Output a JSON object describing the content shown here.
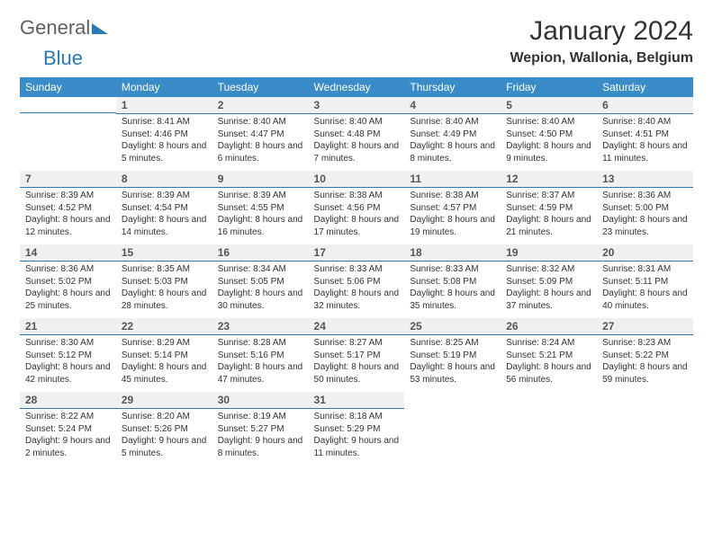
{
  "logo": {
    "general": "General",
    "blue": "Blue"
  },
  "title": "January 2024",
  "location": "Wepion, Wallonia, Belgium",
  "columns": [
    "Sunday",
    "Monday",
    "Tuesday",
    "Wednesday",
    "Thursday",
    "Friday",
    "Saturday"
  ],
  "colors": {
    "header_bg": "#3a8cc9",
    "header_text": "#ffffff",
    "daynum_bg": "#eef0f2",
    "daynum_border": "#2b7ab8",
    "text": "#333333",
    "logo_gray": "#606060",
    "logo_blue": "#2b7ab8"
  },
  "weeks": [
    [
      {
        "day": "",
        "sunrise": "",
        "sunset": "",
        "daylight": ""
      },
      {
        "day": "1",
        "sunrise": "8:41 AM",
        "sunset": "4:46 PM",
        "daylight": "8 hours and 5 minutes."
      },
      {
        "day": "2",
        "sunrise": "8:40 AM",
        "sunset": "4:47 PM",
        "daylight": "8 hours and 6 minutes."
      },
      {
        "day": "3",
        "sunrise": "8:40 AM",
        "sunset": "4:48 PM",
        "daylight": "8 hours and 7 minutes."
      },
      {
        "day": "4",
        "sunrise": "8:40 AM",
        "sunset": "4:49 PM",
        "daylight": "8 hours and 8 minutes."
      },
      {
        "day": "5",
        "sunrise": "8:40 AM",
        "sunset": "4:50 PM",
        "daylight": "8 hours and 9 minutes."
      },
      {
        "day": "6",
        "sunrise": "8:40 AM",
        "sunset": "4:51 PM",
        "daylight": "8 hours and 11 minutes."
      }
    ],
    [
      {
        "day": "7",
        "sunrise": "8:39 AM",
        "sunset": "4:52 PM",
        "daylight": "8 hours and 12 minutes."
      },
      {
        "day": "8",
        "sunrise": "8:39 AM",
        "sunset": "4:54 PM",
        "daylight": "8 hours and 14 minutes."
      },
      {
        "day": "9",
        "sunrise": "8:39 AM",
        "sunset": "4:55 PM",
        "daylight": "8 hours and 16 minutes."
      },
      {
        "day": "10",
        "sunrise": "8:38 AM",
        "sunset": "4:56 PM",
        "daylight": "8 hours and 17 minutes."
      },
      {
        "day": "11",
        "sunrise": "8:38 AM",
        "sunset": "4:57 PM",
        "daylight": "8 hours and 19 minutes."
      },
      {
        "day": "12",
        "sunrise": "8:37 AM",
        "sunset": "4:59 PM",
        "daylight": "8 hours and 21 minutes."
      },
      {
        "day": "13",
        "sunrise": "8:36 AM",
        "sunset": "5:00 PM",
        "daylight": "8 hours and 23 minutes."
      }
    ],
    [
      {
        "day": "14",
        "sunrise": "8:36 AM",
        "sunset": "5:02 PM",
        "daylight": "8 hours and 25 minutes."
      },
      {
        "day": "15",
        "sunrise": "8:35 AM",
        "sunset": "5:03 PM",
        "daylight": "8 hours and 28 minutes."
      },
      {
        "day": "16",
        "sunrise": "8:34 AM",
        "sunset": "5:05 PM",
        "daylight": "8 hours and 30 minutes."
      },
      {
        "day": "17",
        "sunrise": "8:33 AM",
        "sunset": "5:06 PM",
        "daylight": "8 hours and 32 minutes."
      },
      {
        "day": "18",
        "sunrise": "8:33 AM",
        "sunset": "5:08 PM",
        "daylight": "8 hours and 35 minutes."
      },
      {
        "day": "19",
        "sunrise": "8:32 AM",
        "sunset": "5:09 PM",
        "daylight": "8 hours and 37 minutes."
      },
      {
        "day": "20",
        "sunrise": "8:31 AM",
        "sunset": "5:11 PM",
        "daylight": "8 hours and 40 minutes."
      }
    ],
    [
      {
        "day": "21",
        "sunrise": "8:30 AM",
        "sunset": "5:12 PM",
        "daylight": "8 hours and 42 minutes."
      },
      {
        "day": "22",
        "sunrise": "8:29 AM",
        "sunset": "5:14 PM",
        "daylight": "8 hours and 45 minutes."
      },
      {
        "day": "23",
        "sunrise": "8:28 AM",
        "sunset": "5:16 PM",
        "daylight": "8 hours and 47 minutes."
      },
      {
        "day": "24",
        "sunrise": "8:27 AM",
        "sunset": "5:17 PM",
        "daylight": "8 hours and 50 minutes."
      },
      {
        "day": "25",
        "sunrise": "8:25 AM",
        "sunset": "5:19 PM",
        "daylight": "8 hours and 53 minutes."
      },
      {
        "day": "26",
        "sunrise": "8:24 AM",
        "sunset": "5:21 PM",
        "daylight": "8 hours and 56 minutes."
      },
      {
        "day": "27",
        "sunrise": "8:23 AM",
        "sunset": "5:22 PM",
        "daylight": "8 hours and 59 minutes."
      }
    ],
    [
      {
        "day": "28",
        "sunrise": "8:22 AM",
        "sunset": "5:24 PM",
        "daylight": "9 hours and 2 minutes."
      },
      {
        "day": "29",
        "sunrise": "8:20 AM",
        "sunset": "5:26 PM",
        "daylight": "9 hours and 5 minutes."
      },
      {
        "day": "30",
        "sunrise": "8:19 AM",
        "sunset": "5:27 PM",
        "daylight": "9 hours and 8 minutes."
      },
      {
        "day": "31",
        "sunrise": "8:18 AM",
        "sunset": "5:29 PM",
        "daylight": "9 hours and 11 minutes."
      },
      {
        "day": "",
        "sunrise": "",
        "sunset": "",
        "daylight": ""
      },
      {
        "day": "",
        "sunrise": "",
        "sunset": "",
        "daylight": ""
      },
      {
        "day": "",
        "sunrise": "",
        "sunset": "",
        "daylight": ""
      }
    ]
  ]
}
